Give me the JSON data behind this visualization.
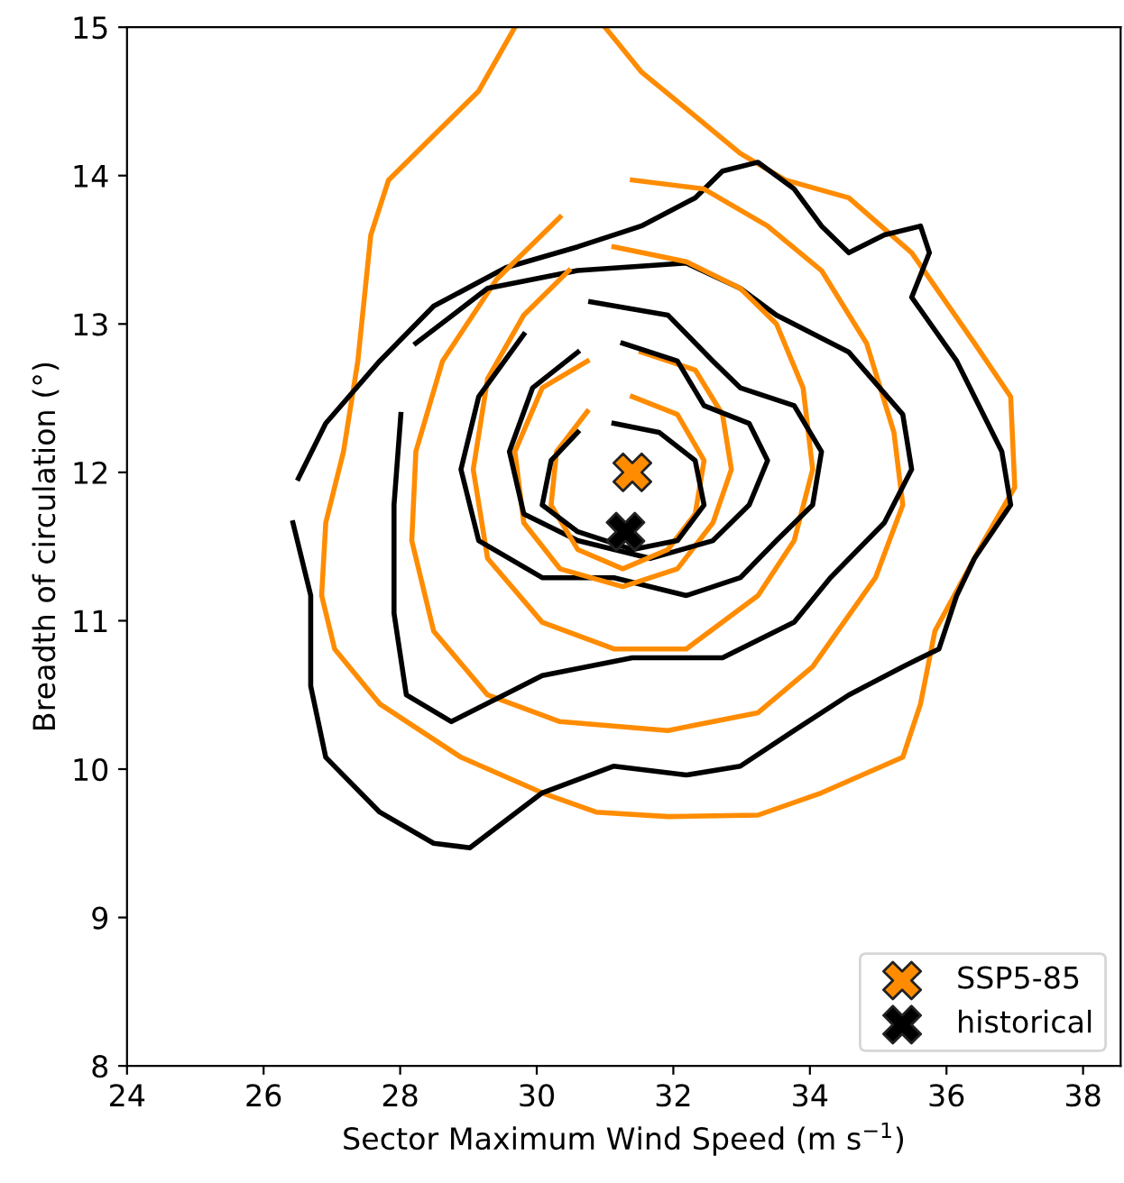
{
  "chart_data": {
    "type": "line",
    "xlabel": "Sector Maximum Wind Speed (m s$^{−1}$)",
    "ylabel": "Breadth of circulation (°)",
    "xlim": [
      24,
      38.55
    ],
    "ylim": [
      8,
      15
    ],
    "xticks": [
      24,
      26,
      28,
      30,
      32,
      34,
      36,
      38
    ],
    "yticks": [
      8,
      9,
      10,
      11,
      12,
      13,
      14,
      15
    ],
    "grid": false,
    "legend": "bottom right",
    "line_style": "solid",
    "series": [
      {
        "color": "#ff8c00",
        "x": [
          31.0,
          31.53,
          32.19,
          32.98,
          33.64,
          34.57,
          35.49,
          36.41,
          36.94,
          37.0,
          36.55,
          35.83,
          35.62,
          35.36,
          34.17,
          33.24,
          31.92,
          30.87,
          30.08,
          28.89,
          27.7,
          27.04,
          26.85,
          26.91,
          27.17,
          27.38,
          27.57,
          27.83,
          28.49,
          29.15,
          29.68
        ],
        "values": [
          15.0,
          14.7,
          14.45,
          14.15,
          13.97,
          13.85,
          13.48,
          12.87,
          12.51,
          11.9,
          11.54,
          10.93,
          10.44,
          10.08,
          9.84,
          9.69,
          9.68,
          9.71,
          9.84,
          10.08,
          10.44,
          10.81,
          11.17,
          11.66,
          12.14,
          12.75,
          13.6,
          13.97,
          14.27,
          14.57,
          15.0
        ]
      },
      {
        "color": "#000000",
        "x": [
          26.51,
          26.91,
          27.7,
          28.49,
          29.55,
          30.6,
          31.53,
          32.32,
          32.72,
          33.24,
          33.77,
          34.17,
          34.57,
          35.09,
          35.62,
          35.75,
          35.49,
          36.15,
          36.81,
          36.94,
          36.41,
          36.15,
          35.89,
          35.36,
          34.57,
          33.77,
          32.98,
          32.19,
          31.13,
          30.08,
          29.02,
          28.49,
          27.7,
          26.91,
          26.69,
          26.69,
          26.43
        ],
        "values": [
          11.96,
          12.33,
          12.75,
          13.12,
          13.38,
          13.52,
          13.66,
          13.85,
          14.03,
          14.09,
          13.91,
          13.66,
          13.48,
          13.6,
          13.66,
          13.48,
          13.18,
          12.75,
          12.14,
          11.78,
          11.42,
          11.17,
          10.81,
          10.69,
          10.5,
          10.26,
          10.02,
          9.96,
          10.02,
          9.84,
          9.47,
          9.5,
          9.71,
          10.08,
          10.56,
          11.17,
          11.66
        ]
      },
      {
        "color": "#ff8c00",
        "x": [
          31.4,
          32.45,
          33.38,
          34.17,
          34.83,
          35.23,
          35.36,
          34.96,
          34.04,
          33.24,
          31.92,
          30.34,
          29.28,
          28.49,
          28.17,
          28.23,
          28.62,
          29.41,
          30.34
        ],
        "values": [
          13.97,
          13.91,
          13.66,
          13.36,
          12.87,
          12.27,
          11.78,
          11.29,
          10.69,
          10.38,
          10.26,
          10.32,
          10.5,
          10.93,
          11.54,
          12.14,
          12.75,
          13.3,
          13.72
        ]
      },
      {
        "color": "#000000",
        "x": [
          28.23,
          29.28,
          30.6,
          32.19,
          32.98,
          33.51,
          34.57,
          35.36,
          35.49,
          35.09,
          34.3,
          33.77,
          32.72,
          31.4,
          30.08,
          28.75,
          28.09,
          27.91,
          27.91,
          28.01
        ],
        "values": [
          12.87,
          13.24,
          13.36,
          13.41,
          13.24,
          13.06,
          12.81,
          12.39,
          12.02,
          11.66,
          11.29,
          10.99,
          10.75,
          10.75,
          10.63,
          10.32,
          10.5,
          11.05,
          11.78,
          12.39
        ]
      },
      {
        "color": "#ff8c00",
        "x": [
          31.13,
          32.19,
          32.98,
          33.51,
          33.9,
          34.04,
          33.77,
          33.24,
          32.19,
          31.13,
          30.08,
          29.28,
          29.07,
          29.28,
          29.81,
          30.47
        ],
        "values": [
          13.52,
          13.42,
          13.24,
          13.0,
          12.57,
          12.02,
          11.54,
          11.17,
          10.81,
          10.81,
          10.99,
          11.42,
          12.02,
          12.63,
          13.06,
          13.36
        ]
      },
      {
        "color": "#000000",
        "x": [
          30.79,
          31.92,
          32.58,
          32.98,
          33.77,
          34.17,
          34.04,
          33.51,
          32.98,
          32.19,
          31.13,
          30.08,
          29.15,
          28.89,
          29.15,
          29.81
        ],
        "values": [
          13.15,
          13.06,
          12.75,
          12.57,
          12.45,
          12.14,
          11.78,
          11.54,
          11.29,
          11.17,
          11.29,
          11.29,
          11.54,
          12.02,
          12.51,
          12.93
        ]
      },
      {
        "color": "#ff8c00",
        "x": [
          31.53,
          32.32,
          32.72,
          32.85,
          32.58,
          32.06,
          31.26,
          30.34,
          29.81,
          29.68,
          30.08,
          30.74
        ],
        "values": [
          12.81,
          12.69,
          12.39,
          12.02,
          11.66,
          11.35,
          11.23,
          11.35,
          11.66,
          12.14,
          12.57,
          12.75
        ]
      },
      {
        "color": "#000000",
        "x": [
          31.26,
          32.06,
          32.45,
          33.11,
          33.38,
          33.11,
          32.58,
          31.66,
          30.6,
          29.81,
          29.6,
          29.94,
          30.6
        ],
        "values": [
          12.87,
          12.75,
          12.45,
          12.33,
          12.08,
          11.78,
          11.54,
          11.42,
          11.54,
          11.72,
          12.14,
          12.57,
          12.81
        ]
      },
      {
        "color": "#ff8c00",
        "x": [
          31.4,
          32.06,
          32.45,
          32.32,
          31.92,
          31.26,
          30.6,
          30.21,
          30.29,
          30.74
        ],
        "values": [
          12.51,
          12.39,
          12.08,
          11.72,
          11.48,
          11.35,
          11.48,
          11.78,
          12.14,
          12.41
        ]
      },
      {
        "color": "#000000",
        "x": [
          31.13,
          31.79,
          32.32,
          32.45,
          32.06,
          31.4,
          30.6,
          30.08,
          30.21,
          30.6
        ],
        "values": [
          12.33,
          12.27,
          12.08,
          11.78,
          11.54,
          11.48,
          11.6,
          11.78,
          12.08,
          12.27
        ]
      },
      {
        "type": "scatter",
        "name": "SSP5-85",
        "color": "#ff8c00",
        "marker": "cross",
        "x": [
          31.4
        ],
        "values": [
          12.0
        ]
      },
      {
        "type": "scatter",
        "name": "historical",
        "color": "#000000",
        "marker": "cross",
        "x": [
          31.3
        ],
        "values": [
          11.6
        ]
      }
    ]
  }
}
